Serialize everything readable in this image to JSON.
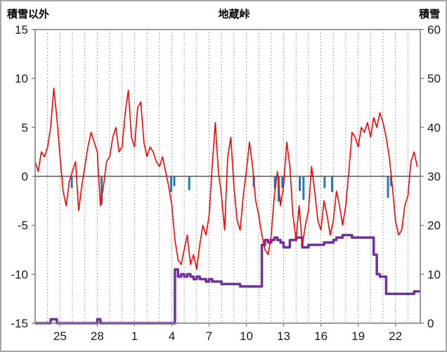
{
  "chart_data": {
    "type": "line",
    "title": "地蔵峠",
    "left_axis": {
      "label": "積雪以外",
      "min": -15,
      "max": 15,
      "ticks": [
        15,
        10,
        5,
        0,
        -5,
        -10,
        -15
      ]
    },
    "right_axis": {
      "label": "積雪",
      "min": 0,
      "max": 60,
      "ticks": [
        60,
        50,
        40,
        30,
        20,
        10,
        0
      ]
    },
    "x_days": 31,
    "x_start_day": 23,
    "samples_per_day": 4,
    "x_tick_labels": [
      "25",
      "28",
      "1",
      "4",
      "7",
      "10",
      "13",
      "16",
      "19",
      "22"
    ],
    "x_tick_positions": [
      2,
      5,
      8,
      11,
      14,
      17,
      20,
      23,
      26,
      29
    ],
    "grid": {
      "vertical_dashed_per_day": true,
      "zero_line": true
    },
    "legend": "none",
    "series": [
      {
        "name": "temperature",
        "type": "line",
        "axis": "left",
        "color": "#ff0000",
        "values": [
          1.5,
          0.5,
          2.5,
          2.0,
          3.0,
          5.0,
          9.0,
          6.0,
          2.0,
          -1.5,
          -3.0,
          -0.5,
          0.5,
          1.5,
          -3.5,
          -1.0,
          1.0,
          3.0,
          4.5,
          3.5,
          2.5,
          -3.0,
          -1.0,
          1.5,
          2.0,
          4.0,
          5.0,
          2.5,
          3.0,
          6.5,
          8.8,
          4.0,
          3.0,
          7.0,
          7.6,
          3.5,
          2.0,
          3.0,
          2.5,
          1.5,
          1.0,
          2.0,
          0.5,
          -1.0,
          -3.0,
          -6.5,
          -8.5,
          -9.0,
          -7.5,
          -6.0,
          -9.0,
          -8.0,
          -9.5,
          -7.0,
          -5.0,
          -6.0,
          -4.0,
          1.0,
          5.5,
          0.5,
          -2.0,
          -5.5,
          2.0,
          4.0,
          -1.0,
          -4.5,
          -5.5,
          -2.0,
          0.5,
          3.5,
          1.0,
          -2.5,
          -4.0,
          -6.0,
          -7.5,
          -8.0,
          -6.0,
          -2.0,
          0.5,
          -3.0,
          -1.0,
          3.5,
          1.0,
          -4.0,
          -6.5,
          -3.0,
          -7.0,
          -5.0,
          -3.5,
          1.0,
          -1.5,
          -4.5,
          -5.5,
          -2.5,
          -4.0,
          -6.0,
          -4.5,
          -1.5,
          -3.0,
          -5.0,
          -3.0,
          0.5,
          4.5,
          4.0,
          3.0,
          5.0,
          4.5,
          5.5,
          4.0,
          6.0,
          5.0,
          6.5,
          5.5,
          4.0,
          2.0,
          -1.0,
          -4.5,
          -6.0,
          -5.5,
          -3.0,
          -2.0,
          1.5,
          2.5,
          1.0
        ]
      },
      {
        "name": "snow-depth",
        "type": "step",
        "axis": "right",
        "color": "#7030a0",
        "values": [
          0,
          0,
          0,
          0,
          0,
          0.8,
          0.8,
          0,
          0,
          0,
          0,
          0,
          0,
          0,
          0,
          0,
          0,
          0,
          0,
          0,
          0.8,
          0,
          0,
          0,
          0,
          0,
          0,
          0,
          0,
          0,
          0,
          0,
          0,
          0,
          0,
          0,
          0,
          0,
          0,
          0,
          0,
          0,
          0,
          0,
          0,
          11,
          9.5,
          10,
          9.5,
          10,
          9.5,
          9,
          9.5,
          9,
          9,
          8.5,
          9,
          8.5,
          8.5,
          8.5,
          8,
          8,
          8,
          8,
          8,
          8,
          7.5,
          7.5,
          7.5,
          7.5,
          7.5,
          7.5,
          7.5,
          16,
          17,
          16.5,
          17,
          17.5,
          17,
          16.5,
          15.5,
          15.5,
          17,
          17,
          17.5,
          17.5,
          15.5,
          15.5,
          16,
          16,
          16,
          16,
          16,
          16.5,
          16.5,
          16.5,
          17,
          17.5,
          17.5,
          18,
          18,
          18,
          17.5,
          17.5,
          17.5,
          17.5,
          17.5,
          17.5,
          17.5,
          14,
          10,
          9.5,
          9.5,
          6,
          6,
          6,
          6,
          6,
          6,
          6,
          6,
          6,
          6.5,
          6.5
        ]
      },
      {
        "name": "precipitation-bars",
        "type": "bar",
        "axis": "left",
        "color": "#2e75b6",
        "points": [
          {
            "x": 2.95,
            "v": -1.2
          },
          {
            "x": 5.35,
            "v": -2.9
          },
          {
            "x": 10.95,
            "v": -1.6
          },
          {
            "x": 11.2,
            "v": -1.0
          },
          {
            "x": 12.4,
            "v": -1.4
          },
          {
            "x": 17.6,
            "v": -1.1
          },
          {
            "x": 19.3,
            "v": -1.3
          },
          {
            "x": 19.6,
            "v": -2.6
          },
          {
            "x": 19.9,
            "v": -1.2
          },
          {
            "x": 21.3,
            "v": -1.5
          },
          {
            "x": 21.6,
            "v": -2.4
          },
          {
            "x": 23.3,
            "v": -1.2
          },
          {
            "x": 23.9,
            "v": -1.6
          },
          {
            "x": 28.4,
            "v": -2.2
          },
          {
            "x": 28.65,
            "v": -1.0
          }
        ]
      }
    ],
    "colors": {
      "frame": "#808080",
      "gridline": "#666666",
      "zero_line": "#595959",
      "tick_text": "#1a1a1a",
      "background": "#ffffff"
    }
  }
}
